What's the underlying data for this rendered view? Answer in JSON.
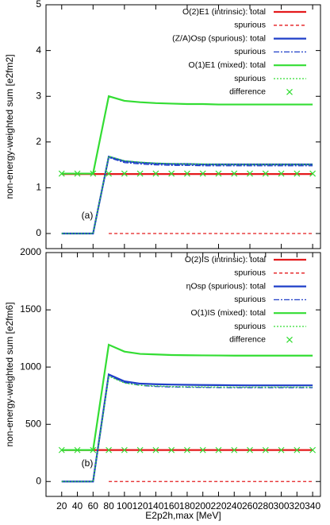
{
  "chart_data": [
    {
      "type": "line",
      "panel_label": "(a)",
      "ylabel": "non-energy-weighted sum [e2fm2]",
      "x": [
        20,
        40,
        60,
        80,
        100,
        120,
        140,
        160,
        180,
        200,
        220,
        240,
        260,
        280,
        300,
        320,
        340
      ],
      "xlim": [
        0,
        350
      ],
      "xticks": [
        20,
        60,
        100,
        140,
        180,
        220,
        260,
        300,
        340
      ],
      "ylim": [
        -0.33,
        5
      ],
      "yticks": [
        0,
        1,
        2,
        3,
        4,
        5
      ],
      "legend": "upper right",
      "series": [
        {
          "name": "O(2)E1 (intrinsic):  total",
          "color": "#e41a1c",
          "style": "solid",
          "values": [
            1.3,
            1.3,
            1.3,
            1.3,
            1.3,
            1.3,
            1.3,
            1.3,
            1.3,
            1.3,
            1.3,
            1.3,
            1.3,
            1.3,
            1.3,
            1.3,
            1.3
          ]
        },
        {
          "name": "spurious",
          "color": "#e41a1c",
          "style": "dashed",
          "values": [
            null,
            null,
            null,
            0,
            0,
            0,
            0,
            0,
            0,
            0,
            0,
            0,
            0,
            0,
            0,
            0,
            0
          ]
        },
        {
          "name": "(Z/A)Osp (spurious):  total",
          "color": "#1f3fc8",
          "style": "solid",
          "values": [
            0,
            0,
            0,
            1.68,
            1.58,
            1.55,
            1.53,
            1.52,
            1.52,
            1.51,
            1.51,
            1.51,
            1.51,
            1.51,
            1.51,
            1.51,
            1.51
          ]
        },
        {
          "name": "spurious",
          "color": "#1f3fc8",
          "style": "dashdot",
          "values": [
            0,
            0,
            0,
            1.66,
            1.55,
            1.52,
            1.5,
            1.49,
            1.49,
            1.48,
            1.48,
            1.48,
            1.48,
            1.48,
            1.48,
            1.48,
            1.48
          ]
        },
        {
          "name": "O(1)E1 (mixed):  total",
          "color": "#33dd33",
          "style": "solid",
          "values": [
            1.31,
            1.31,
            1.31,
            3.0,
            2.9,
            2.87,
            2.85,
            2.84,
            2.83,
            2.83,
            2.82,
            2.82,
            2.82,
            2.82,
            2.82,
            2.82,
            2.82
          ]
        },
        {
          "name": "spurious",
          "color": "#33dd33",
          "style": "dotted",
          "values": [
            0,
            0,
            0,
            1.69,
            1.59,
            1.56,
            1.54,
            1.53,
            1.52,
            1.52,
            1.51,
            1.51,
            1.51,
            1.51,
            1.51,
            1.51,
            1.51
          ]
        },
        {
          "name": "difference",
          "color": "#33dd33",
          "style": "points",
          "values": [
            1.31,
            1.31,
            1.31,
            1.31,
            1.31,
            1.31,
            1.31,
            1.31,
            1.31,
            1.31,
            1.31,
            1.31,
            1.31,
            1.31,
            1.31,
            1.31,
            1.31
          ]
        }
      ]
    },
    {
      "type": "line",
      "panel_label": "(b)",
      "ylabel": "non-energy-weighted sum [e2fm6]",
      "xlabel": "E2p2h,max [MeV]",
      "x": [
        20,
        40,
        60,
        80,
        100,
        120,
        140,
        160,
        180,
        200,
        220,
        240,
        260,
        280,
        300,
        320,
        340
      ],
      "xlim": [
        0,
        350
      ],
      "xticks": [
        20,
        40,
        60,
        80,
        100,
        120,
        140,
        160,
        180,
        200,
        220,
        240,
        260,
        280,
        300,
        320,
        340
      ],
      "ylim": [
        -130,
        2000
      ],
      "yticks": [
        0,
        500,
        1000,
        1500,
        2000
      ],
      "legend": "upper right",
      "series": [
        {
          "name": "O(2)IS (intrinsic):  total",
          "color": "#e41a1c",
          "style": "solid",
          "values": [
            275,
            275,
            275,
            275,
            275,
            275,
            275,
            275,
            275,
            275,
            275,
            275,
            275,
            275,
            275,
            275,
            275
          ]
        },
        {
          "name": "spurious",
          "color": "#e41a1c",
          "style": "dashed",
          "values": [
            null,
            null,
            null,
            0,
            0,
            0,
            0,
            0,
            0,
            0,
            0,
            0,
            0,
            0,
            0,
            0,
            0
          ]
        },
        {
          "name": "ηOsp (spurious):  total",
          "color": "#1f3fc8",
          "style": "solid",
          "values": [
            0,
            0,
            0,
            935,
            875,
            855,
            850,
            847,
            845,
            843,
            842,
            841,
            840,
            840,
            840,
            840,
            840
          ]
        },
        {
          "name": "spurious",
          "color": "#1f3fc8",
          "style": "dashdot",
          "values": [
            0,
            0,
            0,
            925,
            865,
            840,
            830,
            826,
            824,
            822,
            821,
            820,
            820,
            820,
            820,
            820,
            820
          ]
        },
        {
          "name": "O(1)IS (mixed):  total",
          "color": "#33dd33",
          "style": "solid",
          "values": [
            275,
            275,
            275,
            1195,
            1135,
            1115,
            1110,
            1105,
            1103,
            1102,
            1101,
            1100,
            1100,
            1100,
            1100,
            1100,
            1100
          ]
        },
        {
          "name": "spurious",
          "color": "#33dd33",
          "style": "dotted",
          "values": [
            0,
            0,
            0,
            920,
            860,
            840,
            835,
            830,
            828,
            827,
            826,
            825,
            825,
            825,
            825,
            825,
            825
          ]
        },
        {
          "name": "difference",
          "color": "#33dd33",
          "style": "points",
          "values": [
            275,
            275,
            275,
            275,
            275,
            275,
            275,
            275,
            275,
            275,
            275,
            275,
            275,
            275,
            275,
            275,
            275
          ]
        }
      ]
    }
  ]
}
